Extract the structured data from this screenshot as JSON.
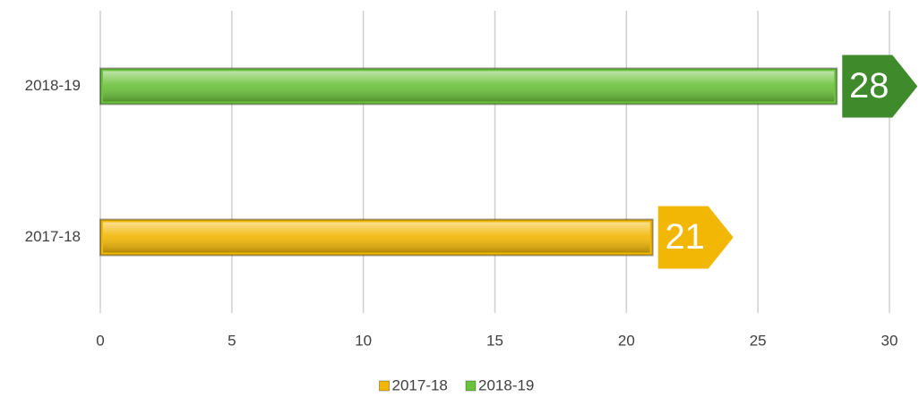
{
  "chart_data": {
    "type": "bar",
    "orientation": "horizontal",
    "categories": [
      "2017-18",
      "2018-19"
    ],
    "series": [
      {
        "name": "2017-18",
        "color": "#f2b705",
        "label_color": "#f2b705",
        "values": [
          21,
          null
        ]
      },
      {
        "name": "2018-19",
        "color": "#6cc33c",
        "label_color": "#3f8a2a",
        "values": [
          null,
          28
        ]
      }
    ],
    "xlim": [
      0,
      30
    ],
    "xticks": [
      0,
      5,
      10,
      15,
      20,
      25,
      30
    ],
    "grid": true,
    "legend": "bottom"
  }
}
